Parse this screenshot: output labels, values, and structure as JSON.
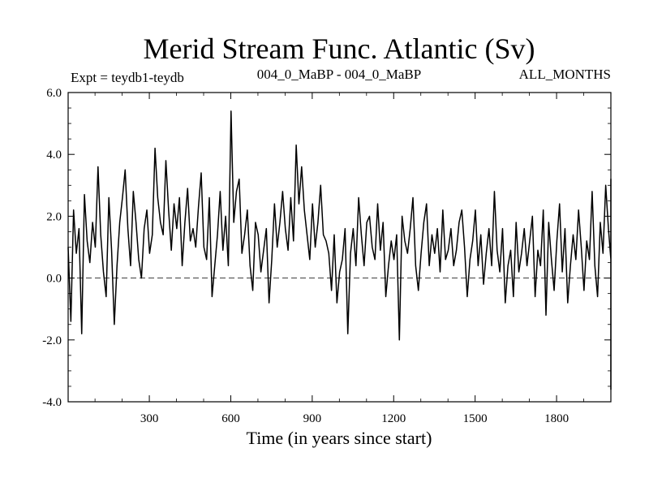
{
  "chart_data": {
    "type": "line",
    "title": "Merid Stream Func. Atlantic (Sv)",
    "subtitle_left": "Expt = teydb1-teydb",
    "subtitle_center": "004_0_MaBP - 004_0_MaBP",
    "subtitle_right": "ALL_MONTHS",
    "xlabel": "Time (in years since start)",
    "ylabel": "",
    "xlim": [
      1,
      2000
    ],
    "ylim": [
      -4.0,
      6.0
    ],
    "x_ticks": [
      300,
      600,
      900,
      1200,
      1500,
      1800
    ],
    "x_tick_labels": [
      "300",
      "600",
      "900",
      "1200",
      "1500",
      "1800"
    ],
    "y_ticks": [
      -4.0,
      -2.0,
      0.0,
      2.0,
      4.0,
      6.0
    ],
    "y_tick_labels": [
      "-4.0",
      "-2.0",
      "0.0",
      "2.0",
      "4.0",
      "6.0"
    ],
    "zero_line": true,
    "series": [
      {
        "name": "Merid Stream Func. Atlantic",
        "x_step": 10,
        "x_start": 1,
        "values": [
          1.0,
          -1.4,
          2.2,
          0.8,
          1.6,
          -1.8,
          2.7,
          1.2,
          0.5,
          1.8,
          1.0,
          3.6,
          1.4,
          0.2,
          -0.6,
          2.6,
          0.9,
          -1.5,
          0.4,
          1.8,
          2.6,
          3.5,
          1.6,
          0.4,
          2.8,
          1.8,
          0.6,
          0.0,
          1.6,
          2.2,
          0.8,
          1.4,
          4.2,
          2.6,
          1.8,
          1.4,
          3.8,
          2.2,
          0.9,
          2.4,
          1.6,
          2.6,
          0.4,
          1.8,
          2.9,
          1.2,
          1.6,
          1.0,
          2.3,
          3.4,
          1.0,
          0.6,
          2.6,
          -0.6,
          0.4,
          1.4,
          2.8,
          0.9,
          2.0,
          0.4,
          5.4,
          1.8,
          2.8,
          3.2,
          0.8,
          1.4,
          2.2,
          0.4,
          -0.4,
          1.8,
          1.4,
          0.2,
          0.9,
          1.6,
          -0.8,
          0.6,
          2.4,
          1.0,
          1.8,
          2.8,
          1.6,
          0.9,
          2.6,
          1.2,
          4.3,
          2.4,
          3.6,
          2.2,
          1.4,
          0.6,
          2.4,
          1.0,
          1.8,
          3.0,
          1.4,
          1.2,
          0.8,
          -0.4,
          1.4,
          -0.8,
          0.2,
          0.6,
          1.6,
          -1.8,
          0.8,
          1.6,
          0.4,
          2.6,
          1.4,
          0.4,
          1.8,
          2.0,
          1.0,
          0.6,
          2.4,
          0.9,
          1.8,
          -0.6,
          0.4,
          1.2,
          0.6,
          1.4,
          -2.0,
          2.0,
          1.2,
          0.8,
          1.6,
          2.6,
          0.4,
          -0.4,
          0.8,
          1.8,
          2.4,
          0.4,
          1.4,
          0.8,
          1.6,
          0.2,
          2.2,
          0.6,
          0.9,
          1.6,
          0.4,
          0.9,
          1.8,
          2.2,
          1.0,
          -0.6,
          0.6,
          1.2,
          2.2,
          0.4,
          1.4,
          -0.2,
          0.8,
          1.6,
          0.4,
          2.8,
          0.9,
          0.2,
          1.6,
          -0.8,
          0.4,
          0.9,
          -0.6,
          1.8,
          0.2,
          0.8,
          1.6,
          0.4,
          1.2,
          2.0,
          -0.6,
          0.9,
          0.4,
          2.2,
          -1.2,
          1.8,
          0.6,
          -0.4,
          1.2,
          2.4,
          0.2,
          1.6,
          -0.8,
          0.4,
          1.4,
          0.6,
          2.2,
          1.0,
          -0.4,
          1.2,
          0.6,
          2.8,
          0.4,
          -0.6,
          1.8,
          0.8,
          3.0,
          1.6,
          0.6,
          2.6,
          0.4,
          2.0,
          1.2,
          0.6,
          -0.8,
          1.4,
          0.6,
          -0.4,
          0.2,
          2.6,
          0.8,
          -0.6,
          1.6,
          0.4,
          1.0,
          -0.4,
          0.8,
          1.6,
          -0.2,
          0.6,
          2.2,
          0.4,
          1.0,
          0.9,
          -0.8,
          0.6,
          1.2,
          0.4,
          -1.6,
          0.8,
          1.6,
          0.2,
          1.0,
          -0.4,
          0.6,
          2.2,
          0.4,
          1.4,
          -0.6,
          0.8,
          1.8,
          0.2,
          1.4,
          -1.4,
          0.6,
          1.4,
          -0.4,
          0.8,
          1.6,
          0.2,
          0.4,
          -1.6,
          1.6,
          0.4,
          2.0,
          1.0,
          -0.8,
          0.6,
          1.4,
          0.8,
          1.2,
          3.1,
          2.4,
          0.6,
          1.4,
          2.6,
          0.8,
          -0.6,
          1.6,
          0.4,
          1.0,
          -1.2,
          0.6,
          1.6,
          0.2,
          -0.6,
          1.0,
          0.6,
          2.2,
          0.4,
          -0.4,
          0.8,
          1.8,
          0.2,
          2.4,
          1.2,
          0.6,
          0.8,
          -1.8,
          0.4,
          1.4,
          -0.6,
          1.0,
          0.2,
          1.6,
          0.4,
          -1.0,
          0.8,
          1.6,
          0.2,
          1.4,
          0.4,
          2.2,
          0.6,
          1.8,
          0.4,
          -0.4,
          1.0,
          0.2,
          -0.8,
          0.6,
          1.6,
          2.8,
          2.0,
          0.4,
          1.6,
          0.6,
          -0.8,
          1.4,
          0.2,
          -0.4,
          0.6,
          -1.2,
          0.8,
          -3.0,
          -1.6,
          0.6,
          0.2,
          -0.4,
          1.0,
          0.2,
          2.6,
          1.2,
          1.6,
          0.6,
          2.6,
          0.9,
          -0.6,
          1.4,
          2.1,
          0.4,
          0.9,
          1.6,
          -0.6,
          0.2,
          0.6,
          -1.4,
          0.4,
          0.8,
          -0.4,
          1.2,
          0.2,
          -0.6,
          0.8,
          0.4,
          1.4,
          -2.6,
          0.6,
          1.0,
          -1.0,
          0.4,
          2.8,
          0.6,
          1.6,
          0.2,
          -0.8,
          0.9,
          0.2,
          -0.4,
          3.2,
          0.9,
          -0.8,
          2.6,
          1.0,
          -0.6,
          0.4,
          1.4,
          0.2,
          -1.2,
          0.8,
          -2.6,
          0.6,
          -1.6,
          -3.6,
          -2.2,
          0.4,
          1.4,
          0.2,
          -0.6,
          1.2,
          0.6,
          -0.4,
          1.0,
          2.2,
          0.4,
          -0.8,
          0.6,
          1.2,
          0.2,
          -0.4,
          0.9,
          1.6,
          0.2,
          1.2,
          -2.8,
          0.6,
          -0.4,
          1.2,
          0.2,
          -0.6,
          0.8,
          1.6,
          0.2,
          0.6,
          -1.4,
          0.4,
          1.2,
          -0.6,
          0.8,
          0.2,
          2.4,
          1.8,
          0.6,
          -0.4,
          1.4,
          0.2,
          0.8,
          -0.6,
          1.8,
          0.4,
          -0.8,
          1.0,
          0.2,
          1.6,
          0.6,
          2.4,
          0.9,
          -0.2,
          1.4,
          0.6,
          3.2,
          1.4,
          0.4,
          1.2,
          -0.6,
          0.8,
          0.2,
          1.4,
          0.4,
          -1.6,
          0.6,
          1.0,
          -0.6,
          0.2,
          0.8,
          1.4,
          0.2,
          -0.4,
          0.8,
          -0.8,
          0.6,
          1.2,
          0.2,
          -0.6,
          0.8,
          0.4,
          1.6,
          -0.6,
          1.0,
          0.4,
          -1.6,
          0.8,
          0.2,
          1.6,
          0.6,
          -0.6,
          0.9,
          1.2,
          2.5,
          0.6,
          1.4,
          1.0
        ]
      }
    ]
  }
}
